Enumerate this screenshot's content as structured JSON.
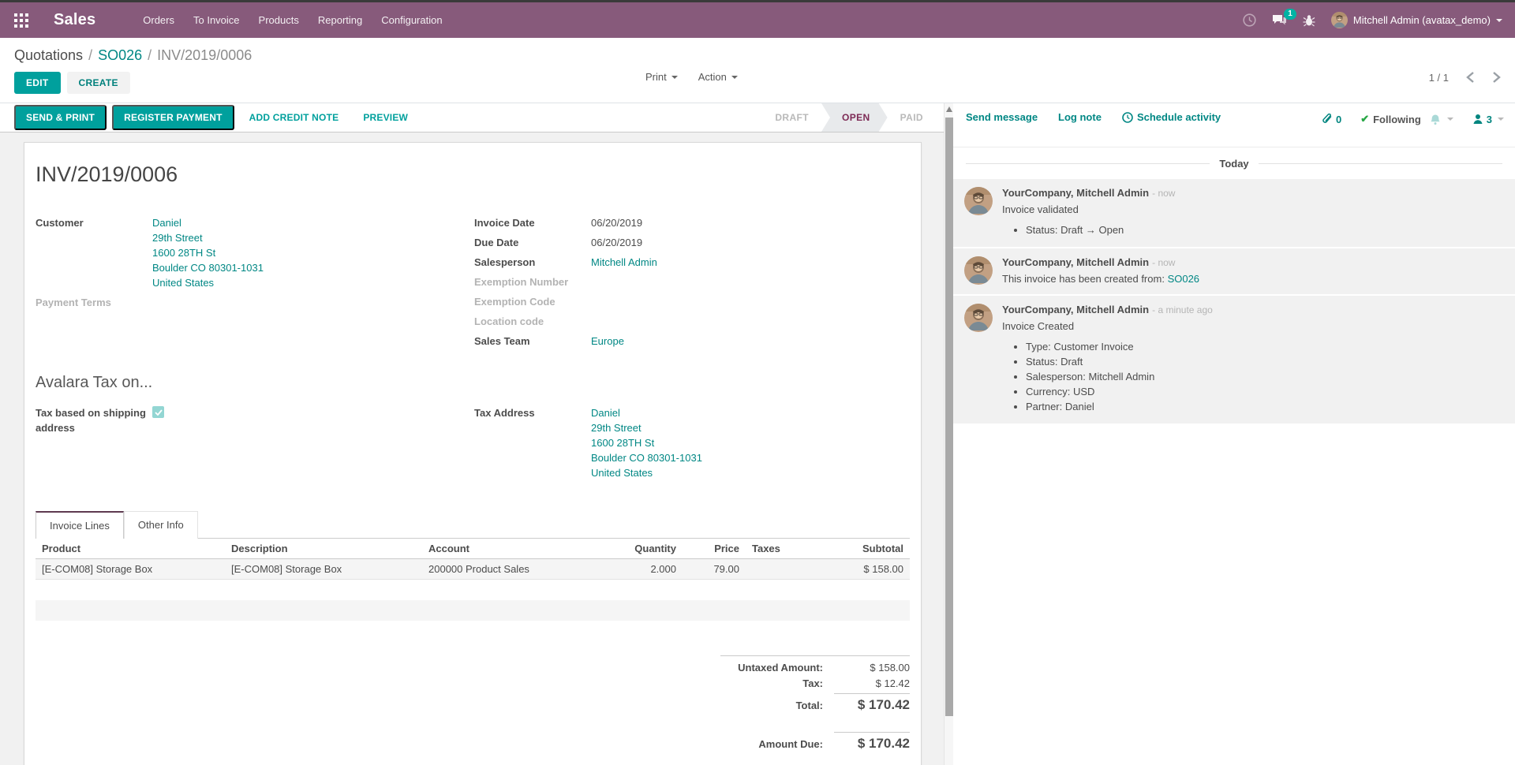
{
  "navbar": {
    "app_name": "Sales",
    "menu_items": [
      "Orders",
      "To Invoice",
      "Products",
      "Reporting",
      "Configuration"
    ],
    "message_badge": "1",
    "user_name": "Mitchell Admin (avatax_demo)"
  },
  "breadcrumb": {
    "items": [
      "Quotations",
      "SO026",
      "INV/2019/0006"
    ]
  },
  "control_panel": {
    "edit_label": "EDIT",
    "create_label": "CREATE",
    "print_label": "Print",
    "action_label": "Action",
    "pager": "1 / 1"
  },
  "statusbar": {
    "buttons": [
      "SEND & PRINT",
      "REGISTER PAYMENT"
    ],
    "link_buttons": [
      "ADD CREDIT NOTE",
      "PREVIEW"
    ],
    "states": [
      "DRAFT",
      "OPEN",
      "PAID"
    ],
    "active_state": "OPEN"
  },
  "invoice": {
    "title": "INV/2019/0006",
    "customer_label": "Customer",
    "customer_lines": [
      "Daniel",
      "29th Street",
      "1600 28TH St",
      "Boulder CO 80301-1031",
      "United States"
    ],
    "payment_terms_label": "Payment Terms",
    "fields_right": [
      {
        "label": "Invoice Date",
        "value": "06/20/2019",
        "type": "text"
      },
      {
        "label": "Due Date",
        "value": "06/20/2019",
        "type": "text"
      },
      {
        "label": "Salesperson",
        "value": "Mitchell Admin",
        "type": "link"
      },
      {
        "label": "Exemption Number",
        "value": "",
        "type": "empty"
      },
      {
        "label": "Exemption Code",
        "value": "",
        "type": "empty"
      },
      {
        "label": "Location code",
        "value": "",
        "type": "empty"
      },
      {
        "label": "Sales Team",
        "value": "Europe",
        "type": "link"
      }
    ],
    "avalara": {
      "heading": "Avalara Tax on...",
      "shipping_label": "Tax based on shipping address",
      "shipping_checked": true,
      "tax_address_label": "Tax Address",
      "tax_address_lines": [
        "Daniel",
        "29th Street",
        "1600 28TH St",
        "Boulder CO 80301-1031",
        "United States"
      ]
    },
    "tabs": [
      "Invoice Lines",
      "Other Info"
    ],
    "lines_table": {
      "columns": [
        "Product",
        "Description",
        "Account",
        "Quantity",
        "Price",
        "Taxes",
        "Subtotal"
      ],
      "rows": [
        [
          "[E-COM08] Storage Box",
          "[E-COM08] Storage Box",
          "200000 Product Sales",
          "2.000",
          "79.00",
          "",
          "$ 158.00"
        ]
      ]
    },
    "totals": {
      "untaxed_label": "Untaxed Amount:",
      "untaxed_value": "$ 158.00",
      "tax_label": "Tax:",
      "tax_value": "$ 12.42",
      "total_label": "Total:",
      "total_value": "$ 170.42",
      "amount_due_label": "Amount Due:",
      "amount_due_value": "$ 170.42"
    }
  },
  "chatter": {
    "send_message": "Send message",
    "log_note": "Log note",
    "schedule_activity": "Schedule activity",
    "attachments_count": "0",
    "following_label": "Following",
    "followers_count": "3",
    "date_divider": "Today",
    "messages": [
      {
        "author": "YourCompany, Mitchell Admin",
        "time": "- now",
        "body": "Invoice validated",
        "body_link": "",
        "bullets": [
          "Status: Draft → Open"
        ]
      },
      {
        "author": "YourCompany, Mitchell Admin",
        "time": "- now",
        "body": "This invoice has been created from: ",
        "body_link": "SO026",
        "bullets": []
      },
      {
        "author": "YourCompany, Mitchell Admin",
        "time": "- a minute ago",
        "body": "Invoice Created",
        "body_link": "",
        "bullets": [
          "Type: Customer Invoice",
          "Status: Draft",
          "Salesperson: Mitchell Admin",
          "Currency: USD",
          "Partner: Daniel"
        ]
      }
    ]
  },
  "colors": {
    "brand": "#875A7B",
    "accent": "#00A09D",
    "link": "#008784",
    "status_active": "#7d2a55",
    "following_check": "#28a745"
  }
}
